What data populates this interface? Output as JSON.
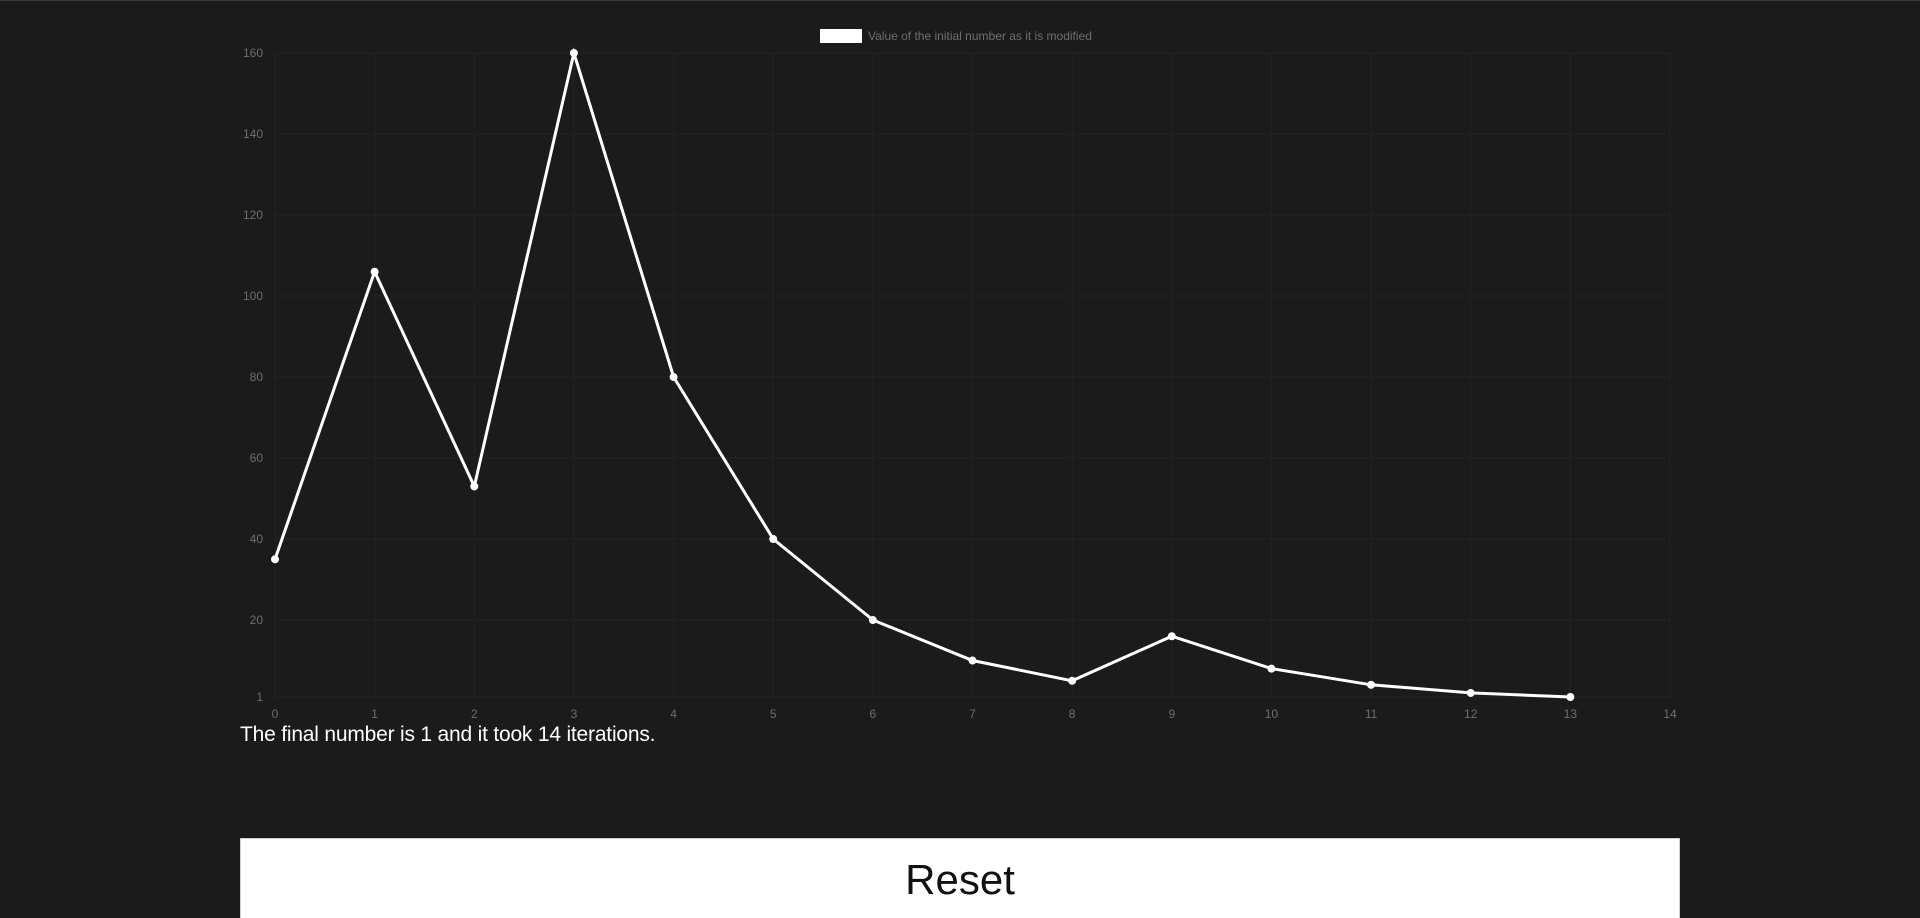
{
  "chart_data": {
    "type": "line",
    "legend": {
      "label": "Value of the initial number as it is modified",
      "swatch_color": "#ffffff",
      "placement": "top-center"
    },
    "x": [
      0,
      1,
      2,
      3,
      4,
      5,
      6,
      7,
      8,
      9,
      10,
      11,
      12,
      13
    ],
    "values": [
      35,
      106,
      53,
      160,
      80,
      40,
      20,
      10,
      5,
      16,
      8,
      4,
      2,
      1
    ],
    "x_ticks": [
      "0",
      "1",
      "2",
      "3",
      "4",
      "5",
      "6",
      "7",
      "8",
      "9",
      "10",
      "11",
      "12",
      "13",
      "14"
    ],
    "y_ticks": [
      "1",
      "20",
      "40",
      "60",
      "80",
      "100",
      "120",
      "140",
      "160"
    ],
    "xlim": [
      0,
      14
    ],
    "ylim": [
      1,
      160
    ],
    "grid": true,
    "line_color": "#ffffff",
    "tick_color": "#6e6e6e"
  },
  "result": {
    "text": "The final number is 1 and it took 14 iterations."
  },
  "reset": {
    "label": "Reset"
  }
}
